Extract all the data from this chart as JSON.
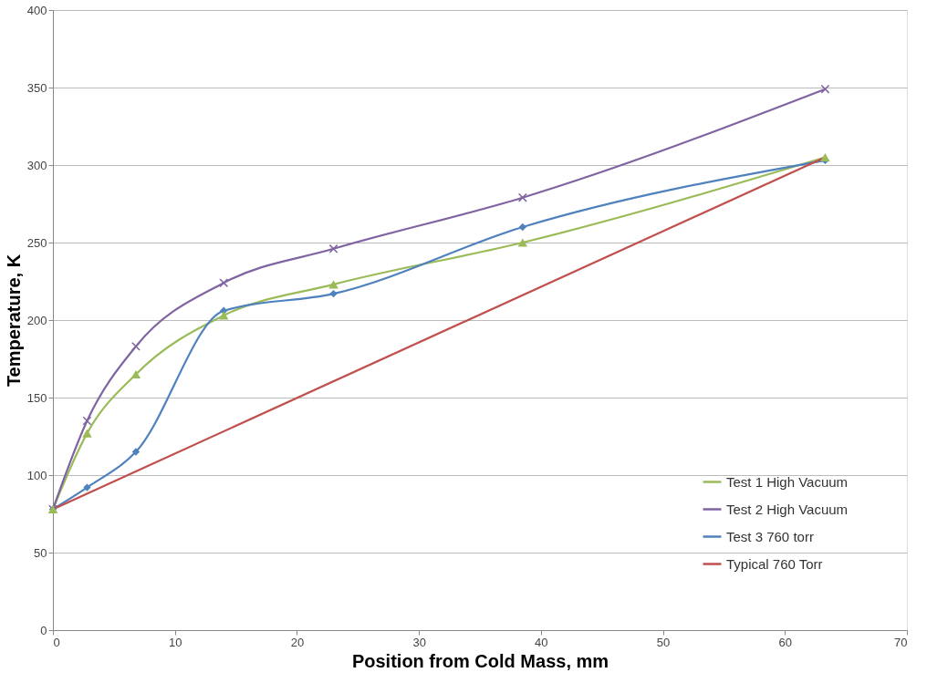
{
  "chart_data": {
    "type": "line",
    "xlabel": "Position from Cold Mass, mm",
    "ylabel": "Temperature, K",
    "xlim": [
      0,
      70
    ],
    "xticks": [
      0,
      10,
      20,
      30,
      40,
      50,
      60,
      70
    ],
    "ylim": [
      0,
      400
    ],
    "yticks": [
      0,
      50,
      100,
      150,
      200,
      250,
      300,
      350,
      400
    ],
    "grid": "y",
    "legend": "bottom right",
    "line_style": "solid",
    "series": [
      {
        "name": "Test 1 High Vacuum",
        "color": "#9bbb59",
        "marker": "triangle",
        "x": [
          0,
          2.8,
          6.8,
          14,
          23,
          38.5,
          63.3
        ],
        "values": [
          78,
          127,
          165,
          203,
          223,
          250,
          305
        ]
      },
      {
        "name": "Test 2 High Vacuum",
        "color": "#8064a2",
        "marker": "cross",
        "x": [
          0,
          2.8,
          6.8,
          14,
          23,
          38.5,
          63.3
        ],
        "values": [
          78,
          135,
          183,
          224,
          246,
          279,
          349
        ]
      },
      {
        "name": "Test 3 760 torr",
        "color": "#4f81bd",
        "marker": "diamond",
        "x": [
          0,
          2.8,
          6.8,
          14,
          23,
          38.5,
          63.3
        ],
        "values": [
          78,
          92,
          115,
          206,
          217,
          260,
          303
        ]
      },
      {
        "name": "Typical 760 Torr",
        "color": "#c0504d",
        "marker": "none",
        "x": [
          0,
          63.3
        ],
        "values": [
          78,
          305
        ]
      }
    ]
  }
}
